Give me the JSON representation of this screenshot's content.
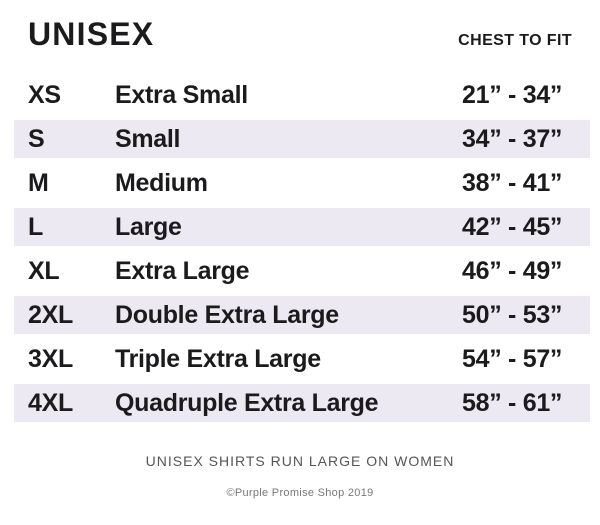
{
  "header": {
    "title": "UNISEX",
    "column_label": "CHEST TO FIT"
  },
  "table": {
    "rows": [
      {
        "code": "XS",
        "name": "Extra Small",
        "range": "21” - 34”",
        "shaded": false
      },
      {
        "code": "S",
        "name": "Small",
        "range": "34” - 37”",
        "shaded": true
      },
      {
        "code": "M",
        "name": "Medium",
        "range": "38” - 41”",
        "shaded": false
      },
      {
        "code": "L",
        "name": "Large",
        "range": "42” - 45”",
        "shaded": true
      },
      {
        "code": "XL",
        "name": "Extra Large",
        "range": "46” - 49”",
        "shaded": false
      },
      {
        "code": "2XL",
        "name": "Double Extra Large",
        "range": "50” - 53”",
        "shaded": true
      },
      {
        "code": "3XL",
        "name": "Triple Extra Large",
        "range": "54” - 57”",
        "shaded": false
      },
      {
        "code": "4XL",
        "name": "Quadruple Extra Large",
        "range": "58” - 61”",
        "shaded": true
      }
    ]
  },
  "footer": {
    "note": "UNISEX SHIRTS RUN LARGE ON WOMEN",
    "copyright": "©Purple Promise Shop 2019"
  },
  "colors": {
    "text": "#1b1b1d",
    "row_shade": "#ede9f2",
    "note_text": "#54555a",
    "copyright_text": "#77787d",
    "background": "#ffffff"
  }
}
